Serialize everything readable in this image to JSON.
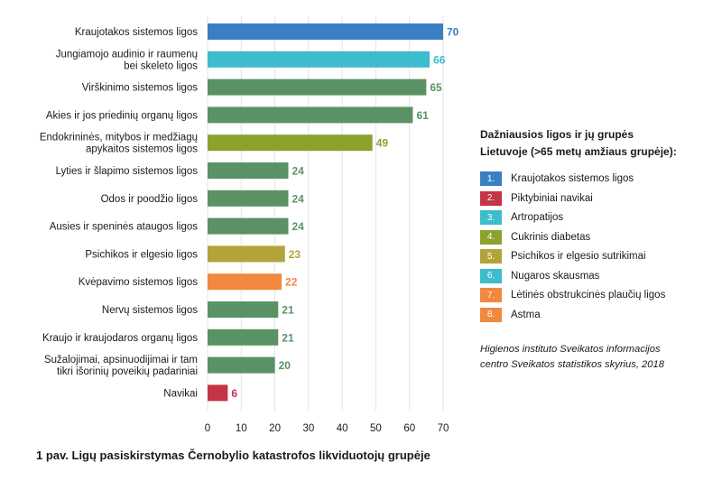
{
  "chart_data": {
    "type": "bar",
    "orientation": "horizontal",
    "categories": [
      [
        "Kraujotakos sistemos ligos"
      ],
      [
        "Jungiamojo audinio ir raumenų",
        "bei skeleto ligos"
      ],
      [
        "Virškinimo sistemos ligos"
      ],
      [
        "Akies ir jos priedinių organų ligos"
      ],
      [
        "Endokrininės, mitybos ir medžiagų",
        "apykaitos sistemos ligos"
      ],
      [
        "Lyties ir šlapimo sistemos ligos"
      ],
      [
        "Odos ir poodžio ligos"
      ],
      [
        "Ausies ir speninės ataugos ligos"
      ],
      [
        "Psichikos ir elgesio ligos"
      ],
      [
        "Kvėpavimo sistemos ligos"
      ],
      [
        "Nervų sistemos ligos"
      ],
      [
        "Kraujo ir kraujodaros organų ligos"
      ],
      [
        "Sužalojimai, apsinuodijimai ir tam",
        "tikri išorinių poveikių padariniai"
      ],
      [
        "Navikai"
      ]
    ],
    "values": [
      70,
      66,
      65,
      61,
      49,
      24,
      24,
      24,
      23,
      22,
      21,
      21,
      20,
      6
    ],
    "value_labels": [
      "70",
      "66",
      "65",
      "61",
      "49",
      "24",
      "24",
      "24",
      "23",
      "22",
      "21",
      "21",
      "20",
      "6"
    ],
    "colors": [
      "#3a7fc4",
      "#3cbccc",
      "#5b9265",
      "#5b9265",
      "#8ba22c",
      "#5b9265",
      "#5b9265",
      "#5b9265",
      "#b3a43a",
      "#f0883e",
      "#5b9265",
      "#5b9265",
      "#5b9265",
      "#c53545"
    ],
    "label_colors": [
      "#3a7fc4",
      "#3cbccc",
      "#5b9265",
      "#5b9265",
      "#8ba22c",
      "#5b9265",
      "#5b9265",
      "#5b9265",
      "#b3a43a",
      "#f0883e",
      "#5b9265",
      "#5b9265",
      "#5b9265",
      "#c53545"
    ],
    "xlim": [
      0,
      70
    ],
    "xticks": [
      "0",
      "10",
      "20",
      "30",
      "40",
      "50",
      "60",
      "70"
    ],
    "grid": true,
    "title": "",
    "xlabel": "",
    "ylabel": ""
  },
  "caption": "1 pav. Ligų pasiskirstymas Černobylio katastrofos likviduotojų grupėje",
  "legend": {
    "title_line1": "Dažniausios ligos ir jų grupės",
    "title_line2": "Lietuvoje (>65 metų amžiaus grupėje):",
    "items": [
      {
        "num": "1.",
        "label": "Kraujotakos sistemos ligos",
        "color": "#3a7fc4"
      },
      {
        "num": "2.",
        "label": "Piktybiniai navikai",
        "color": "#c53545"
      },
      {
        "num": "3.",
        "label": "Artropatijos",
        "color": "#3cbccc"
      },
      {
        "num": "4.",
        "label": "Cukrinis diabetas",
        "color": "#8ba22c"
      },
      {
        "num": "5.",
        "label": "Psichikos ir elgesio sutrikimai",
        "color": "#b3a43a"
      },
      {
        "num": "6.",
        "label": "Nugaros skausmas",
        "color": "#3cbccc"
      },
      {
        "num": "7.",
        "label": "Lėtinės obstrukcinės plaučių ligos",
        "color": "#f0883e"
      },
      {
        "num": "8.",
        "label": "Astma",
        "color": "#f0883e"
      }
    ]
  },
  "source": {
    "line1": "Higienos instituto Sveikatos informacijos",
    "line2": "centro Sveikatos statistikos skyrius, 2018"
  }
}
